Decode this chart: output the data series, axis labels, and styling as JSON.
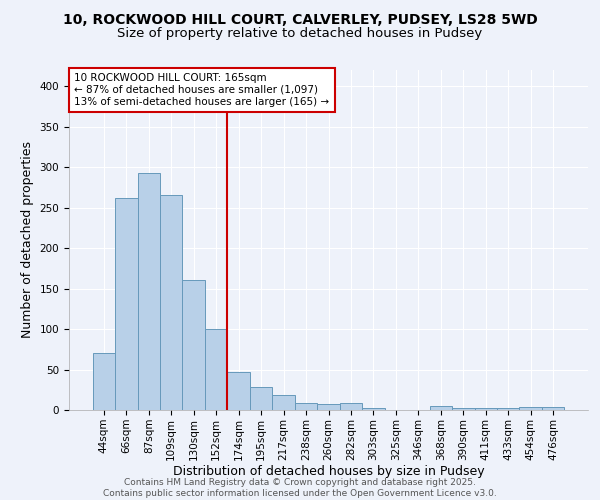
{
  "title1": "10, ROCKWOOD HILL COURT, CALVERLEY, PUDSEY, LS28 5WD",
  "title2": "Size of property relative to detached houses in Pudsey",
  "xlabel": "Distribution of detached houses by size in Pudsey",
  "ylabel": "Number of detached properties",
  "categories": [
    "44sqm",
    "66sqm",
    "87sqm",
    "109sqm",
    "130sqm",
    "152sqm",
    "174sqm",
    "195sqm",
    "217sqm",
    "238sqm",
    "260sqm",
    "282sqm",
    "303sqm",
    "325sqm",
    "346sqm",
    "368sqm",
    "390sqm",
    "411sqm",
    "433sqm",
    "454sqm",
    "476sqm"
  ],
  "values": [
    70,
    262,
    293,
    265,
    160,
    100,
    47,
    29,
    18,
    9,
    8,
    9,
    3,
    0,
    0,
    5,
    2,
    3,
    3,
    4,
    4
  ],
  "bar_color": "#b8d0e8",
  "bar_edge_color": "#6699bb",
  "vline_x": 6,
  "vline_color": "#cc0000",
  "annotation_text": "10 ROCKWOOD HILL COURT: 165sqm\n← 87% of detached houses are smaller (1,097)\n13% of semi-detached houses are larger (165) →",
  "annotation_box_color": "#ffffff",
  "annotation_box_edge": "#cc0000",
  "ylim": [
    0,
    420
  ],
  "yticks": [
    0,
    50,
    100,
    150,
    200,
    250,
    300,
    350,
    400
  ],
  "bg_color": "#eef2fa",
  "grid_color": "#ffffff",
  "footer": "Contains HM Land Registry data © Crown copyright and database right 2025.\nContains public sector information licensed under the Open Government Licence v3.0.",
  "title1_fontsize": 10,
  "title2_fontsize": 9.5,
  "axis_label_fontsize": 9,
  "tick_fontsize": 7.5,
  "annotation_fontsize": 7.5,
  "footer_fontsize": 6.5
}
